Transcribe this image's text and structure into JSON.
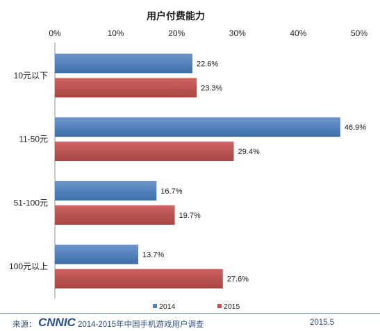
{
  "chart_data": {
    "type": "bar",
    "orientation": "horizontal",
    "title": "用户付费能力",
    "categories": [
      "10元以下",
      "11-50元",
      "51-100元",
      "100元以上"
    ],
    "series": [
      {
        "name": "2014",
        "values": [
          22.6,
          46.9,
          16.7,
          13.7
        ],
        "labels": [
          "22.6%",
          "46.9%",
          "16.7%",
          "13.7%"
        ]
      },
      {
        "name": "2015",
        "values": [
          23.3,
          29.4,
          19.7,
          27.6
        ],
        "labels": [
          "23.3%",
          "29.4%",
          "19.7%",
          "27.6%"
        ]
      }
    ],
    "xlim": [
      0,
      50
    ],
    "xticks": [
      "0%",
      "10%",
      "20%",
      "30%",
      "40%",
      "50%"
    ],
    "axis_position": "top",
    "grid": false,
    "legend_position": "bottom",
    "colors": {
      "2014": "#4f81bd",
      "2015": "#c0504d"
    }
  },
  "footer": {
    "source_label": "来源：",
    "logo_text": "CNNIC",
    "source_text": "2014-2015年中国手机游戏用户调查",
    "date": "2015.5"
  }
}
